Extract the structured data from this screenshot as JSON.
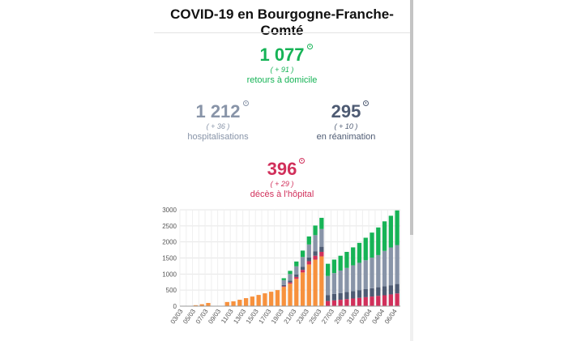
{
  "header": {
    "title": "COVID-19 en Bourgogne-Franche-Comté"
  },
  "stats": {
    "home": {
      "value": "1 077",
      "delta": "( + 91 )",
      "label": "retours à domicile",
      "color": "#16b356"
    },
    "hospital": {
      "value": "1 212",
      "delta": "( + 36 )",
      "label": "hospitalisations",
      "color": "#8894a8"
    },
    "icu": {
      "value": "295",
      "delta": "( + 10 )",
      "label": "en réanimation",
      "color": "#4e5b73"
    },
    "deaths": {
      "value": "396",
      "delta": "( + 29 )",
      "label": "décès à l'hôpital",
      "color": "#d1305b"
    }
  },
  "chart_data": {
    "type": "bar",
    "stacked": true,
    "ylim": [
      0,
      3000
    ],
    "yticks": [
      0,
      500,
      1000,
      1500,
      2000,
      2500,
      3000
    ],
    "grid": true,
    "categories": [
      "03/03",
      "04/03",
      "05/03",
      "06/03",
      "07/03",
      "08/03",
      "09/03",
      "10/03",
      "11/03",
      "12/03",
      "13/03",
      "14/03",
      "15/03",
      "16/03",
      "17/03",
      "18/03",
      "19/03",
      "20/03",
      "21/03",
      "22/03",
      "23/03",
      "24/03",
      "25/03",
      "26/03",
      "27/03",
      "28/03",
      "29/03",
      "30/03",
      "31/03",
      "01/04",
      "02/04",
      "03/04",
      "04/04",
      "05/04",
      "06/04"
    ],
    "xticks": [
      "03/03",
      "05/03",
      "07/03",
      "09/03",
      "11/03",
      "13/03",
      "15/03",
      "17/03",
      "19/03",
      "21/03",
      "23/03",
      "25/03",
      "27/03",
      "29/03",
      "31/03",
      "02/04",
      "04/04",
      "06/04"
    ],
    "series": [
      {
        "color": "#f7913d",
        "values": [
          0,
          10,
          30,
          60,
          100,
          0,
          0,
          130,
          150,
          200,
          250,
          300,
          350,
          400,
          450,
          500,
          600,
          700,
          850,
          1050,
          1300,
          1450,
          1550,
          0,
          0,
          0,
          0,
          0,
          0,
          0,
          0,
          0,
          0,
          0,
          0
        ]
      },
      {
        "color": "#d1305b",
        "values": [
          0,
          0,
          0,
          0,
          0,
          0,
          0,
          0,
          0,
          0,
          0,
          0,
          0,
          0,
          0,
          0,
          20,
          40,
          60,
          80,
          100,
          120,
          140,
          160,
          180,
          200,
          220,
          240,
          260,
          280,
          300,
          320,
          340,
          367,
          396
        ]
      },
      {
        "color": "#4e5b73",
        "values": [
          0,
          0,
          0,
          0,
          0,
          0,
          0,
          0,
          0,
          0,
          0,
          0,
          0,
          0,
          0,
          0,
          40,
          60,
          80,
          100,
          120,
          140,
          160,
          180,
          200,
          210,
          220,
          230,
          240,
          250,
          260,
          270,
          280,
          285,
          295
        ]
      },
      {
        "color": "#8894a8",
        "values": [
          0,
          0,
          0,
          0,
          0,
          0,
          0,
          0,
          0,
          0,
          0,
          0,
          0,
          0,
          0,
          0,
          150,
          200,
          250,
          300,
          400,
          500,
          550,
          600,
          650,
          700,
          750,
          800,
          850,
          900,
          950,
          1000,
          1100,
          1176,
          1212
        ]
      },
      {
        "color": "#16b356",
        "values": [
          0,
          0,
          0,
          0,
          0,
          0,
          0,
          0,
          0,
          0,
          0,
          0,
          0,
          0,
          0,
          0,
          60,
          100,
          150,
          200,
          250,
          300,
          350,
          380,
          420,
          460,
          500,
          560,
          620,
          700,
          780,
          860,
          920,
          986,
          1077
        ]
      }
    ]
  }
}
